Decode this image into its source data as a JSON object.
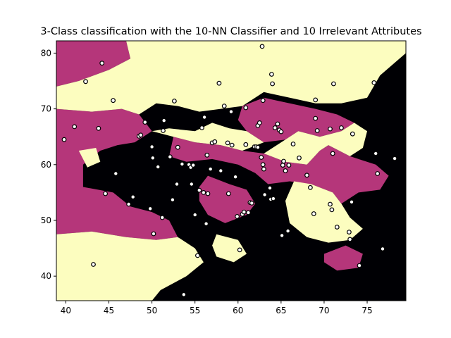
{
  "chart_data": {
    "type": "scatter",
    "title": "3-Class classification with the 10-NN Classifier and 10 Irrelevant Attributes",
    "xlabel": "",
    "ylabel": "",
    "xlim": [
      38.9,
      79.5
    ],
    "ylim": [
      35.6,
      82.2
    ],
    "xticks": [
      40,
      45,
      50,
      55,
      60,
      65,
      70,
      75
    ],
    "yticks": [
      40,
      50,
      60,
      70,
      80
    ],
    "grid": false,
    "legend": "none",
    "colors": {
      "class_a": "#b5367a",
      "class_b": "#fcfdbf",
      "class_c": "#000004",
      "point_edge": "#000000"
    },
    "regions": [
      {
        "class": "class_a",
        "points": [
          [
            38.9,
            82.2
          ],
          [
            47.0,
            82.2
          ],
          [
            47.5,
            79.0
          ],
          [
            45.0,
            77.0
          ],
          [
            41.5,
            75.0
          ],
          [
            38.9,
            74.0
          ]
        ]
      },
      {
        "class": "class_a",
        "points": [
          [
            38.9,
            70.0
          ],
          [
            43.0,
            69.5
          ],
          [
            46.5,
            70.0
          ],
          [
            48.5,
            69.0
          ],
          [
            50.0,
            66.0
          ],
          [
            48.0,
            64.0
          ],
          [
            46.0,
            63.5
          ],
          [
            44.0,
            62.5
          ],
          [
            42.0,
            60.0
          ],
          [
            42.0,
            56.0
          ],
          [
            45.5,
            55.0
          ],
          [
            47.5,
            52.5
          ],
          [
            50.0,
            51.5
          ],
          [
            52.0,
            50.0
          ],
          [
            53.0,
            47.0
          ],
          [
            50.5,
            46.5
          ],
          [
            47.0,
            47.0
          ],
          [
            43.0,
            48.0
          ],
          [
            38.9,
            47.5
          ]
        ]
      },
      {
        "class": "class_a",
        "points": [
          [
            52.5,
            65.0
          ],
          [
            55.0,
            64.0
          ],
          [
            58.0,
            63.5
          ],
          [
            60.5,
            62.5
          ],
          [
            63.0,
            62.0
          ],
          [
            65.5,
            60.5
          ],
          [
            68.0,
            60.0
          ],
          [
            69.5,
            62.5
          ],
          [
            70.5,
            63.5
          ],
          [
            73.0,
            61.5
          ],
          [
            76.0,
            60.0
          ],
          [
            77.5,
            58.0
          ],
          [
            76.5,
            55.5
          ],
          [
            74.0,
            55.0
          ],
          [
            72.0,
            53.0
          ],
          [
            71.0,
            55.0
          ],
          [
            68.5,
            56.5
          ],
          [
            66.0,
            57.0
          ],
          [
            63.5,
            56.5
          ],
          [
            62.0,
            58.5
          ],
          [
            60.0,
            60.0
          ],
          [
            57.0,
            61.0
          ],
          [
            54.0,
            60.5
          ],
          [
            52.0,
            61.5
          ]
        ]
      },
      {
        "class": "class_a",
        "points": [
          [
            60.5,
            70.5
          ],
          [
            63.0,
            72.0
          ],
          [
            66.0,
            71.0
          ],
          [
            69.0,
            70.0
          ],
          [
            71.5,
            69.0
          ],
          [
            73.5,
            67.5
          ],
          [
            72.0,
            66.0
          ],
          [
            69.5,
            65.0
          ],
          [
            67.0,
            66.0
          ],
          [
            65.5,
            64.5
          ],
          [
            63.0,
            64.0
          ],
          [
            61.0,
            66.0
          ],
          [
            60.0,
            68.0
          ]
        ]
      },
      {
        "class": "class_a",
        "points": [
          [
            56.5,
            58.0
          ],
          [
            59.0,
            56.5
          ],
          [
            61.0,
            55.5
          ],
          [
            62.0,
            53.0
          ],
          [
            61.0,
            51.0
          ],
          [
            58.5,
            49.5
          ],
          [
            56.5,
            51.0
          ],
          [
            55.5,
            53.5
          ],
          [
            55.5,
            56.0
          ]
        ]
      },
      {
        "class": "class_a",
        "points": [
          [
            70.0,
            44.0
          ],
          [
            72.5,
            45.5
          ],
          [
            74.5,
            44.0
          ],
          [
            74.0,
            41.5
          ],
          [
            71.5,
            41.0
          ],
          [
            70.0,
            42.5
          ]
        ]
      },
      {
        "class": "class_b",
        "points": [
          [
            47.0,
            82.2
          ],
          [
            79.5,
            82.2
          ],
          [
            79.5,
            80.0
          ],
          [
            76.5,
            76.0
          ],
          [
            75.0,
            72.0
          ],
          [
            72.0,
            71.0
          ],
          [
            69.0,
            71.0
          ],
          [
            66.0,
            72.0
          ],
          [
            63.0,
            73.0
          ],
          [
            60.5,
            70.5
          ],
          [
            58.0,
            70.0
          ],
          [
            55.5,
            69.5
          ],
          [
            53.0,
            70.5
          ],
          [
            50.5,
            71.0
          ],
          [
            48.5,
            69.0
          ],
          [
            46.5,
            70.0
          ],
          [
            43.0,
            69.5
          ],
          [
            38.9,
            70.0
          ],
          [
            38.9,
            74.0
          ],
          [
            41.5,
            75.0
          ],
          [
            45.0,
            77.0
          ],
          [
            47.5,
            79.0
          ]
        ]
      },
      {
        "class": "class_b",
        "points": [
          [
            50.0,
            66.0
          ],
          [
            52.0,
            66.5
          ],
          [
            55.0,
            66.0
          ],
          [
            57.0,
            67.5
          ],
          [
            59.0,
            66.5
          ],
          [
            61.0,
            66.0
          ],
          [
            63.0,
            64.0
          ],
          [
            60.5,
            62.5
          ],
          [
            58.0,
            63.5
          ],
          [
            55.0,
            64.0
          ],
          [
            52.5,
            65.0
          ]
        ]
      },
      {
        "class": "class_b",
        "points": [
          [
            38.9,
            47.5
          ],
          [
            43.0,
            48.0
          ],
          [
            47.0,
            47.0
          ],
          [
            50.5,
            46.5
          ],
          [
            53.0,
            47.0
          ],
          [
            55.0,
            45.0
          ],
          [
            56.0,
            42.5
          ],
          [
            54.0,
            40.0
          ],
          [
            51.0,
            37.5
          ],
          [
            50.0,
            35.6
          ],
          [
            38.9,
            35.6
          ]
        ]
      },
      {
        "class": "class_b",
        "points": [
          [
            65.5,
            64.5
          ],
          [
            67.0,
            66.0
          ],
          [
            69.5,
            65.0
          ],
          [
            72.0,
            66.0
          ],
          [
            73.5,
            67.5
          ],
          [
            75.0,
            66.0
          ],
          [
            74.5,
            63.0
          ],
          [
            73.0,
            61.5
          ],
          [
            70.5,
            63.5
          ],
          [
            69.5,
            62.5
          ],
          [
            68.0,
            60.0
          ],
          [
            65.5,
            60.5
          ],
          [
            63.0,
            62.0
          ]
        ]
      },
      {
        "class": "class_b",
        "points": [
          [
            66.5,
            57.0
          ],
          [
            68.5,
            56.5
          ],
          [
            71.0,
            55.0
          ],
          [
            72.0,
            53.0
          ],
          [
            73.0,
            50.5
          ],
          [
            74.5,
            48.5
          ],
          [
            73.0,
            46.5
          ],
          [
            70.5,
            46.0
          ],
          [
            68.0,
            47.0
          ],
          [
            66.0,
            49.5
          ],
          [
            65.5,
            53.5
          ]
        ]
      },
      {
        "class": "class_b",
        "points": [
          [
            57.5,
            47.5
          ],
          [
            60.0,
            46.5
          ],
          [
            61.0,
            44.0
          ],
          [
            59.5,
            42.5
          ],
          [
            57.5,
            43.5
          ],
          [
            57.0,
            45.5
          ]
        ]
      },
      {
        "class": "class_b",
        "points": [
          [
            41.5,
            62.5
          ],
          [
            43.5,
            63.0
          ],
          [
            44.0,
            60.5
          ],
          [
            42.5,
            59.5
          ]
        ]
      }
    ],
    "series": [
      {
        "points": [
          [
            39.8,
            64.5
          ],
          [
            41.0,
            66.8
          ],
          [
            42.3,
            74.9
          ],
          [
            43.2,
            42.1
          ],
          [
            43.8,
            66.5
          ],
          [
            44.2,
            78.2
          ],
          [
            44.6,
            54.8
          ],
          [
            45.5,
            71.5
          ],
          [
            45.8,
            58.4
          ],
          [
            47.3,
            52.9
          ],
          [
            47.8,
            54.2
          ],
          [
            48.5,
            65.1
          ],
          [
            48.7,
            65.3
          ],
          [
            49.2,
            67.6
          ],
          [
            49.8,
            52.1
          ],
          [
            50.0,
            63.2
          ],
          [
            50.1,
            61.2
          ],
          [
            50.2,
            47.6
          ],
          [
            50.7,
            59.6
          ],
          [
            51.2,
            50.5
          ],
          [
            51.3,
            66.1
          ],
          [
            51.4,
            67.9
          ],
          [
            52.1,
            61.4
          ],
          [
            52.4,
            53.7
          ],
          [
            52.6,
            71.4
          ],
          [
            52.9,
            56.5
          ],
          [
            53.0,
            63.1
          ],
          [
            53.5,
            60.1
          ],
          [
            53.7,
            36.7
          ],
          [
            54.3,
            60.0
          ],
          [
            54.5,
            59.5
          ],
          [
            54.6,
            56.5
          ],
          [
            54.8,
            59.9
          ],
          [
            55.0,
            51.0
          ],
          [
            55.3,
            43.7
          ],
          [
            55.5,
            55.4
          ],
          [
            55.8,
            66.6
          ],
          [
            56.0,
            55.0
          ],
          [
            56.1,
            68.5
          ],
          [
            56.3,
            49.4
          ],
          [
            56.4,
            61.7
          ],
          [
            56.5,
            54.8
          ],
          [
            56.8,
            59.2
          ],
          [
            57.0,
            63.9
          ],
          [
            57.3,
            64.1
          ],
          [
            57.8,
            74.6
          ],
          [
            58.0,
            58.9
          ],
          [
            58.4,
            70.5
          ],
          [
            58.8,
            63.9
          ],
          [
            58.9,
            54.8
          ],
          [
            59.2,
            69.5
          ],
          [
            59.3,
            63.5
          ],
          [
            59.7,
            57.8
          ],
          [
            59.9,
            50.7
          ],
          [
            60.2,
            44.7
          ],
          [
            60.5,
            51.1
          ],
          [
            60.7,
            51.5
          ],
          [
            60.9,
            70.2
          ],
          [
            60.9,
            63.6
          ],
          [
            61.2,
            51.4
          ],
          [
            61.4,
            53.2
          ],
          [
            61.6,
            53.1
          ],
          [
            61.9,
            63.2
          ],
          [
            62.1,
            63.2
          ],
          [
            62.3,
            67.0
          ],
          [
            62.3,
            63.1
          ],
          [
            62.5,
            67.5
          ],
          [
            62.7,
            61.3
          ],
          [
            62.8,
            81.2
          ],
          [
            62.9,
            71.5
          ],
          [
            62.9,
            60.0
          ],
          [
            63.0,
            59.2
          ],
          [
            63.1,
            54.6
          ],
          [
            63.7,
            55.8
          ],
          [
            63.8,
            53.8
          ],
          [
            63.9,
            76.2
          ],
          [
            64.0,
            74.5
          ],
          [
            64.1,
            53.9
          ],
          [
            64.3,
            66.6
          ],
          [
            64.6,
            67.3
          ],
          [
            64.8,
            66.2
          ],
          [
            65.0,
            65.9
          ],
          [
            65.1,
            47.3
          ],
          [
            65.2,
            59.9
          ],
          [
            65.3,
            60.6
          ],
          [
            65.5,
            58.9
          ],
          [
            65.8,
            48.1
          ],
          [
            65.9,
            59.9
          ],
          [
            66.4,
            63.7
          ],
          [
            67.1,
            61.2
          ],
          [
            68.0,
            58.1
          ],
          [
            68.4,
            55.9
          ],
          [
            68.8,
            51.2
          ],
          [
            69.0,
            71.6
          ],
          [
            69.0,
            68.3
          ],
          [
            69.2,
            66.1
          ],
          [
            70.7,
            66.4
          ],
          [
            70.7,
            52.9
          ],
          [
            70.9,
            51.9
          ],
          [
            71.0,
            62.0
          ],
          [
            71.1,
            74.5
          ],
          [
            71.5,
            48.8
          ],
          [
            72.0,
            66.6
          ],
          [
            72.9,
            47.9
          ],
          [
            73.0,
            46.6
          ],
          [
            73.2,
            53.3
          ],
          [
            73.3,
            65.5
          ],
          [
            74.1,
            41.9
          ],
          [
            75.8,
            74.7
          ],
          [
            76.0,
            62.0
          ],
          [
            76.2,
            58.4
          ],
          [
            76.8,
            44.9
          ],
          [
            78.2,
            61.1
          ]
        ]
      }
    ]
  }
}
